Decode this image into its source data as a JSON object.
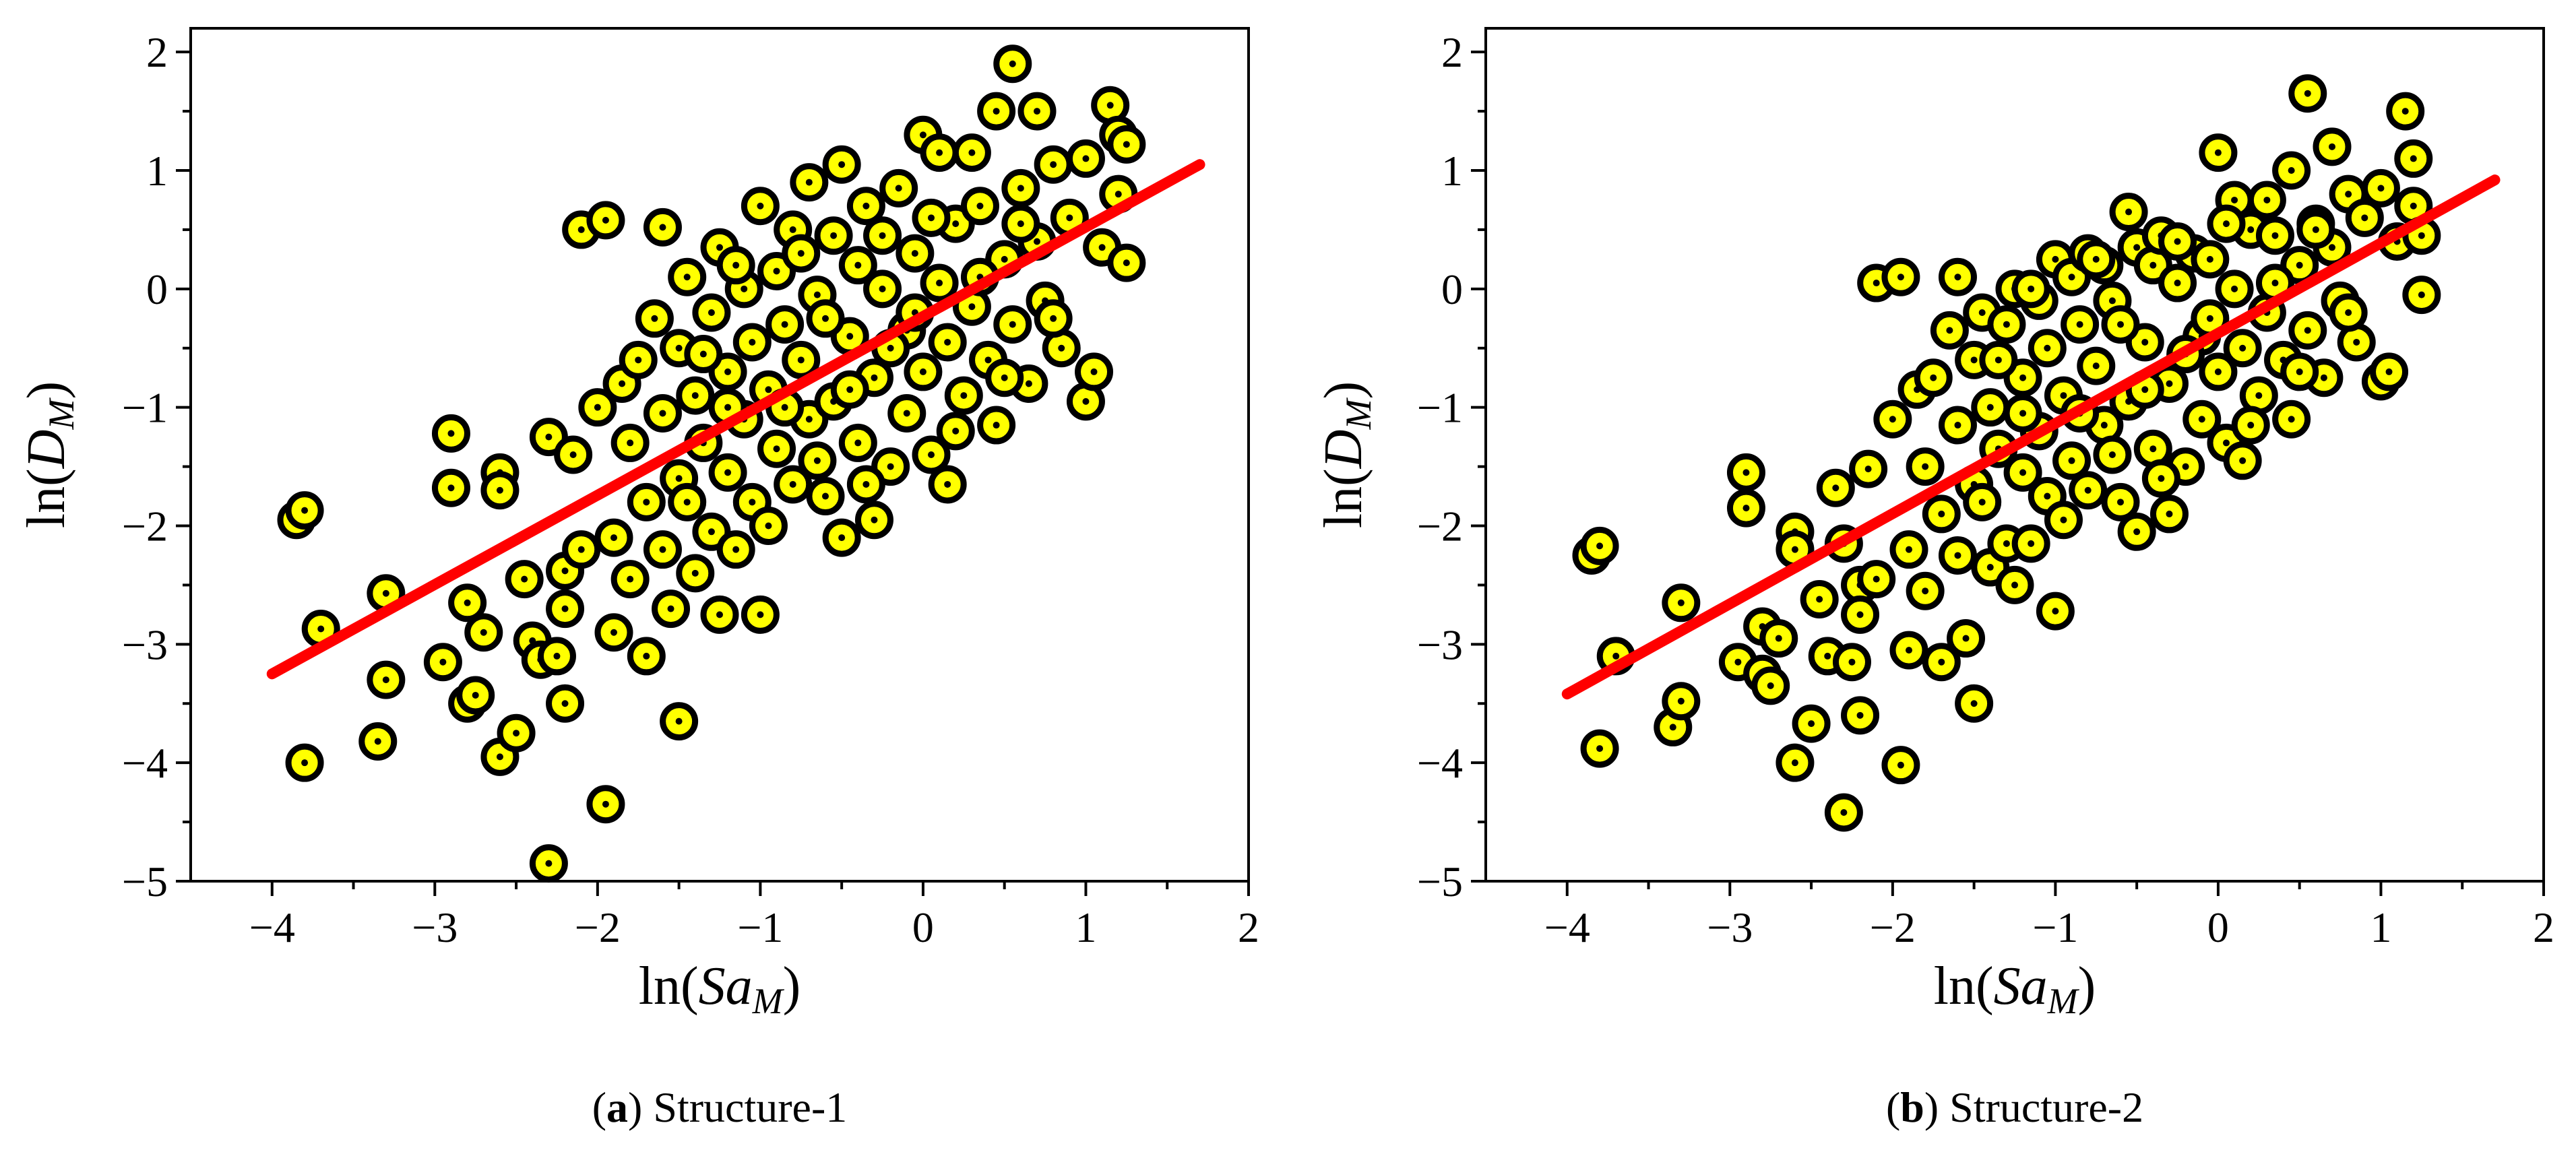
{
  "figure": {
    "colors": {
      "point_fill": "#ffff00",
      "point_stroke": "#000000",
      "fit_line": "#ff0000"
    }
  },
  "chart_data": [
    {
      "type": "scatter",
      "panel_label": "a",
      "panel_title": "Structure-1",
      "xlabel": {
        "base": "ln(",
        "main": "Sa",
        "sub": "M",
        "close": ")"
      },
      "ylabel": {
        "base": "ln(",
        "main": "D",
        "sub": "M",
        "close": ")"
      },
      "xlim": [
        -4.5,
        2
      ],
      "ylim": [
        -5,
        2.2
      ],
      "xticks": [
        -4,
        -3,
        -2,
        -1,
        0,
        1,
        2
      ],
      "yticks": [
        -5,
        -4,
        -3,
        -2,
        -1,
        0,
        1,
        2
      ],
      "xtick_labels": [
        "−4",
        "−3",
        "−2",
        "−1",
        "0",
        "1",
        "2"
      ],
      "ytick_labels": [
        "−5",
        "−4",
        "−3",
        "−2",
        "−1",
        "0",
        "1",
        "2"
      ],
      "fit_line": {
        "x": [
          -4,
          1.7
        ],
        "y": [
          -3.25,
          1.05
        ]
      },
      "grid": false,
      "points": [
        [
          -3.85,
          -1.95
        ],
        [
          -3.8,
          -1.87
        ],
        [
          -3.8,
          -4.0
        ],
        [
          -3.7,
          -2.87
        ],
        [
          -3.35,
          -3.82
        ],
        [
          -3.3,
          -2.57
        ],
        [
          -3.3,
          -3.3
        ],
        [
          -2.95,
          -3.15
        ],
        [
          -2.9,
          -1.22
        ],
        [
          -2.9,
          -1.68
        ],
        [
          -2.8,
          -2.65
        ],
        [
          -2.8,
          -3.5
        ],
        [
          -2.75,
          -3.43
        ],
        [
          -2.7,
          -2.9
        ],
        [
          -2.6,
          -1.55
        ],
        [
          -2.6,
          -1.7
        ],
        [
          -2.6,
          -3.95
        ],
        [
          -2.5,
          -3.75
        ],
        [
          -2.45,
          -2.45
        ],
        [
          -2.4,
          -2.97
        ],
        [
          -2.35,
          -3.13
        ],
        [
          -2.3,
          -1.25
        ],
        [
          -2.3,
          -4.85
        ],
        [
          -2.25,
          -3.1
        ],
        [
          -2.2,
          -2.38
        ],
        [
          -2.2,
          -2.7
        ],
        [
          -2.2,
          -3.5
        ],
        [
          -2.15,
          -1.4
        ],
        [
          -2.1,
          0.5
        ],
        [
          -2.1,
          -2.2
        ],
        [
          -2.0,
          -1.0
        ],
        [
          -1.95,
          0.58
        ],
        [
          -1.95,
          -4.35
        ],
        [
          -1.9,
          -2.1
        ],
        [
          -1.9,
          -2.9
        ],
        [
          -1.85,
          -0.8
        ],
        [
          -1.8,
          -1.3
        ],
        [
          -1.8,
          -2.45
        ],
        [
          -1.75,
          -0.6
        ],
        [
          -1.7,
          -1.8
        ],
        [
          -1.7,
          -3.1
        ],
        [
          -1.65,
          -0.25
        ],
        [
          -1.6,
          -1.05
        ],
        [
          -1.6,
          -2.2
        ],
        [
          -1.6,
          0.52
        ],
        [
          -1.55,
          -2.7
        ],
        [
          -1.5,
          -0.5
        ],
        [
          -1.5,
          -1.6
        ],
        [
          -1.5,
          -3.65
        ],
        [
          -1.45,
          0.1
        ],
        [
          -1.4,
          -0.9
        ],
        [
          -1.4,
          -2.4
        ],
        [
          -1.35,
          -1.3
        ],
        [
          -1.3,
          -0.2
        ],
        [
          -1.3,
          -2.05
        ],
        [
          -1.25,
          0.35
        ],
        [
          -1.25,
          -2.75
        ],
        [
          -1.2,
          -0.7
        ],
        [
          -1.2,
          -1.55
        ],
        [
          -1.15,
          -2.2
        ],
        [
          -1.1,
          0.0
        ],
        [
          -1.1,
          -1.1
        ],
        [
          -1.05,
          -0.45
        ],
        [
          -1.05,
          -1.8
        ],
        [
          -1.0,
          0.7
        ],
        [
          -1.0,
          -2.75
        ],
        [
          -0.95,
          -0.85
        ],
        [
          -0.9,
          0.15
        ],
        [
          -0.9,
          -1.35
        ],
        [
          -0.85,
          -0.3
        ],
        [
          -0.8,
          0.5
        ],
        [
          -0.8,
          -1.65
        ],
        [
          -0.75,
          -0.6
        ],
        [
          -0.7,
          0.9
        ],
        [
          -0.7,
          -1.1
        ],
        [
          -0.65,
          -0.05
        ],
        [
          -0.6,
          -1.75
        ],
        [
          -0.55,
          0.45
        ],
        [
          -0.55,
          -0.95
        ],
        [
          -0.5,
          1.05
        ],
        [
          -0.5,
          -2.1
        ],
        [
          -0.45,
          -0.4
        ],
        [
          -0.4,
          0.2
        ],
        [
          -0.4,
          -1.3
        ],
        [
          -0.35,
          0.7
        ],
        [
          -0.3,
          -0.75
        ],
        [
          -0.3,
          -1.95
        ],
        [
          -0.25,
          0.0
        ],
        [
          -0.2,
          -1.5
        ],
        [
          -0.15,
          0.85
        ],
        [
          -0.1,
          -0.35
        ],
        [
          -0.1,
          -1.05
        ],
        [
          -0.05,
          0.3
        ],
        [
          0.0,
          -0.7
        ],
        [
          0.0,
          1.3
        ],
        [
          0.05,
          -1.4
        ],
        [
          0.1,
          0.05
        ],
        [
          0.1,
          1.15
        ],
        [
          0.15,
          -0.45
        ],
        [
          0.15,
          -1.65
        ],
        [
          0.2,
          0.55
        ],
        [
          0.25,
          -0.9
        ],
        [
          0.3,
          1.15
        ],
        [
          0.3,
          -0.15
        ],
        [
          0.35,
          0.7
        ],
        [
          0.4,
          -0.6
        ],
        [
          0.45,
          1.5
        ],
        [
          0.45,
          -1.15
        ],
        [
          0.5,
          0.25
        ],
        [
          0.55,
          1.9
        ],
        [
          0.55,
          -0.3
        ],
        [
          0.6,
          0.85
        ],
        [
          0.65,
          -0.8
        ],
        [
          0.7,
          0.4
        ],
        [
          0.7,
          1.5
        ],
        [
          0.75,
          -0.1
        ],
        [
          0.8,
          1.05
        ],
        [
          0.85,
          -0.5
        ],
        [
          0.9,
          0.6
        ],
        [
          1.0,
          -0.95
        ],
        [
          1.0,
          1.1
        ],
        [
          1.05,
          -0.7
        ],
        [
          1.1,
          0.35
        ],
        [
          1.15,
          1.55
        ],
        [
          1.2,
          0.8
        ],
        [
          1.2,
          1.3
        ],
        [
          1.25,
          0.22
        ],
        [
          1.25,
          1.22
        ],
        [
          -1.45,
          -1.8
        ],
        [
          -1.35,
          -0.55
        ],
        [
          -1.2,
          -1.0
        ],
        [
          -1.15,
          0.2
        ],
        [
          -0.95,
          -2.0
        ],
        [
          -0.85,
          -1.0
        ],
        [
          -0.75,
          0.3
        ],
        [
          -0.65,
          -1.45
        ],
        [
          -0.6,
          -0.25
        ],
        [
          -0.45,
          -0.85
        ],
        [
          -0.35,
          -1.65
        ],
        [
          -0.25,
          0.45
        ],
        [
          -0.2,
          -0.5
        ],
        [
          -0.05,
          -0.2
        ],
        [
          0.05,
          0.6
        ],
        [
          0.2,
          -1.2
        ],
        [
          0.35,
          0.1
        ],
        [
          0.5,
          -0.75
        ],
        [
          0.6,
          0.55
        ],
        [
          0.8,
          -0.25
        ]
      ]
    },
    {
      "type": "scatter",
      "panel_label": "b",
      "panel_title": "Structure-2",
      "xlabel": {
        "base": "ln(",
        "main": "Sa",
        "sub": "M",
        "close": ")"
      },
      "ylabel": {
        "base": "ln(",
        "main": "D",
        "sub": "M",
        "close": ")"
      },
      "xlim": [
        -4.5,
        2
      ],
      "ylim": [
        -5,
        2.2
      ],
      "xticks": [
        -4,
        -3,
        -2,
        -1,
        0,
        1,
        2
      ],
      "yticks": [
        -5,
        -4,
        -3,
        -2,
        -1,
        0,
        1,
        2
      ],
      "xtick_labels": [
        "−4",
        "−3",
        "−2",
        "−1",
        "0",
        "1",
        "2"
      ],
      "ytick_labels": [
        "−5",
        "−4",
        "−3",
        "−2",
        "−1",
        "0",
        "1",
        "2"
      ],
      "fit_line": {
        "x": [
          -4,
          1.7
        ],
        "y": [
          -3.42,
          0.92
        ]
      },
      "grid": false,
      "points": [
        [
          -3.85,
          -2.25
        ],
        [
          -3.8,
          -2.17
        ],
        [
          -3.8,
          -3.88
        ],
        [
          -3.7,
          -3.1
        ],
        [
          -3.35,
          -3.7
        ],
        [
          -3.3,
          -2.65
        ],
        [
          -3.3,
          -3.48
        ],
        [
          -2.95,
          -3.15
        ],
        [
          -2.9,
          -1.55
        ],
        [
          -2.9,
          -1.85
        ],
        [
          -2.8,
          -2.85
        ],
        [
          -2.8,
          -3.25
        ],
        [
          -2.75,
          -3.35
        ],
        [
          -2.7,
          -2.95
        ],
        [
          -2.6,
          -2.05
        ],
        [
          -2.6,
          -2.2
        ],
        [
          -2.6,
          -4.0
        ],
        [
          -2.5,
          -3.67
        ],
        [
          -2.45,
          -2.62
        ],
        [
          -2.4,
          -3.1
        ],
        [
          -2.35,
          -1.68
        ],
        [
          -2.3,
          -2.15
        ],
        [
          -2.3,
          -4.42
        ],
        [
          -2.25,
          -3.15
        ],
        [
          -2.2,
          -2.5
        ],
        [
          -2.2,
          -2.75
        ],
        [
          -2.2,
          -3.6
        ],
        [
          -2.15,
          -1.52
        ],
        [
          -2.1,
          0.05
        ],
        [
          -2.1,
          -2.45
        ],
        [
          -2.0,
          -1.1
        ],
        [
          -1.95,
          0.1
        ],
        [
          -1.95,
          -4.02
        ],
        [
          -1.9,
          -2.2
        ],
        [
          -1.9,
          -3.05
        ],
        [
          -1.85,
          -0.85
        ],
        [
          -1.8,
          -1.5
        ],
        [
          -1.8,
          -2.55
        ],
        [
          -1.75,
          -0.75
        ],
        [
          -1.7,
          -1.9
        ],
        [
          -1.7,
          -3.15
        ],
        [
          -1.65,
          -0.35
        ],
        [
          -1.6,
          -1.15
        ],
        [
          -1.6,
          -2.25
        ],
        [
          -1.6,
          0.1
        ],
        [
          -1.55,
          -2.95
        ],
        [
          -1.5,
          -0.6
        ],
        [
          -1.5,
          -1.65
        ],
        [
          -1.5,
          -3.5
        ],
        [
          -1.45,
          -0.2
        ],
        [
          -1.4,
          -1.0
        ],
        [
          -1.4,
          -2.35
        ],
        [
          -1.35,
          -1.35
        ],
        [
          -1.3,
          -0.3
        ],
        [
          -1.3,
          -2.15
        ],
        [
          -1.25,
          0.0
        ],
        [
          -1.25,
          -2.5
        ],
        [
          -1.2,
          -0.75
        ],
        [
          -1.2,
          -1.55
        ],
        [
          -1.15,
          -2.15
        ],
        [
          -1.1,
          -0.1
        ],
        [
          -1.1,
          -1.2
        ],
        [
          -1.05,
          -0.5
        ],
        [
          -1.05,
          -1.75
        ],
        [
          -1.0,
          0.25
        ],
        [
          -1.0,
          -2.72
        ],
        [
          -0.95,
          -0.9
        ],
        [
          -0.9,
          0.1
        ],
        [
          -0.9,
          -1.45
        ],
        [
          -0.85,
          -0.3
        ],
        [
          -0.8,
          0.3
        ],
        [
          -0.8,
          -1.7
        ],
        [
          -0.75,
          -0.65
        ],
        [
          -0.7,
          0.2
        ],
        [
          -0.7,
          -1.15
        ],
        [
          -0.65,
          -0.1
        ],
        [
          -0.6,
          -1.8
        ],
        [
          -0.55,
          0.65
        ],
        [
          -0.55,
          -0.95
        ],
        [
          -0.5,
          0.35
        ],
        [
          -0.5,
          -2.05
        ],
        [
          -0.45,
          -0.45
        ],
        [
          -0.4,
          0.2
        ],
        [
          -0.4,
          -1.35
        ],
        [
          -0.35,
          0.45
        ],
        [
          -0.3,
          -0.8
        ],
        [
          -0.3,
          -1.9
        ],
        [
          -0.25,
          0.05
        ],
        [
          -0.2,
          -1.5
        ],
        [
          -0.15,
          0.3
        ],
        [
          -0.1,
          -0.4
        ],
        [
          -0.1,
          -1.1
        ],
        [
          -0.05,
          0.25
        ],
        [
          0.0,
          -0.7
        ],
        [
          0.0,
          1.15
        ],
        [
          0.05,
          -1.3
        ],
        [
          0.1,
          0.0
        ],
        [
          0.1,
          0.75
        ],
        [
          0.15,
          -0.5
        ],
        [
          0.15,
          -1.45
        ],
        [
          0.2,
          0.5
        ],
        [
          0.25,
          -0.9
        ],
        [
          0.3,
          0.75
        ],
        [
          0.3,
          -0.2
        ],
        [
          0.35,
          0.45
        ],
        [
          0.4,
          -0.6
        ],
        [
          0.45,
          1.0
        ],
        [
          0.45,
          -1.1
        ],
        [
          0.5,
          0.2
        ],
        [
          0.55,
          1.65
        ],
        [
          0.55,
          -0.35
        ],
        [
          0.6,
          0.55
        ],
        [
          0.65,
          -0.75
        ],
        [
          0.7,
          0.35
        ],
        [
          0.7,
          1.2
        ],
        [
          0.75,
          -0.1
        ],
        [
          0.8,
          0.8
        ],
        [
          0.85,
          -0.45
        ],
        [
          0.9,
          0.6
        ],
        [
          1.0,
          -0.78
        ],
        [
          1.0,
          0.85
        ],
        [
          1.05,
          -0.7
        ],
        [
          1.1,
          0.4
        ],
        [
          1.15,
          1.5
        ],
        [
          1.2,
          0.7
        ],
        [
          1.2,
          1.1
        ],
        [
          1.25,
          -0.05
        ],
        [
          1.25,
          0.45
        ],
        [
          -1.45,
          -1.8
        ],
        [
          -1.35,
          -0.6
        ],
        [
          -1.2,
          -1.05
        ],
        [
          -1.15,
          0.0
        ],
        [
          -0.95,
          -1.95
        ],
        [
          -0.85,
          -1.05
        ],
        [
          -0.75,
          0.25
        ],
        [
          -0.65,
          -1.4
        ],
        [
          -0.6,
          -0.3
        ],
        [
          -0.45,
          -0.85
        ],
        [
          -0.35,
          -1.6
        ],
        [
          -0.25,
          0.4
        ],
        [
          -0.2,
          -0.55
        ],
        [
          -0.05,
          -0.25
        ],
        [
          0.05,
          0.55
        ],
        [
          0.2,
          -1.15
        ],
        [
          0.35,
          0.05
        ],
        [
          0.5,
          -0.7
        ],
        [
          0.6,
          0.5
        ],
        [
          0.8,
          -0.2
        ]
      ]
    }
  ]
}
